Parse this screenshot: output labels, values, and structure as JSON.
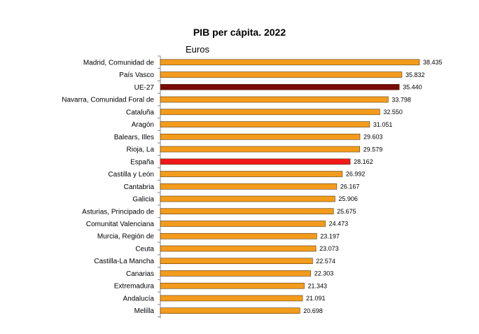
{
  "chart_data": {
    "type": "bar",
    "orientation": "horizontal",
    "title": "PIB per cápita. 2022",
    "subtitle": "Euros",
    "xlabel": "",
    "ylabel": "",
    "xlim": [
      0,
      40000
    ],
    "grid": false,
    "legend": "none",
    "colors": {
      "default": "#F39C1C",
      "UE-27": "#7B0A0A",
      "España": "#F01818",
      "bar_edge": "#5a3a10"
    },
    "categories": [
      "Madrid, Comunidad de",
      "País Vasco",
      "UE-27",
      "Navarra, Comunidad Foral de",
      "Cataluña",
      "Aragón",
      "Balears, Illes",
      "Rioja, La",
      "España",
      "Castilla y León",
      "Cantabria",
      "Galicia",
      "Asturias, Principado de",
      "Comunitat Valenciana",
      "Murcia, Región de",
      "Ceuta",
      "Castilla-La Mancha",
      "Canarias",
      "Extremadura",
      "Andalucía",
      "Melilla"
    ],
    "values": [
      38435,
      35832,
      35440,
      33798,
      32550,
      31051,
      29603,
      29579,
      28162,
      26992,
      26167,
      25906,
      25675,
      24473,
      23197,
      23073,
      22574,
      22303,
      21343,
      21091,
      20698
    ],
    "value_labels": [
      "38.435",
      "35.832",
      "35.440",
      "33.798",
      "32.550",
      "31.051",
      "29.603",
      "29.579",
      "28.162",
      "26.992",
      "26.167",
      "25.906",
      "25.675",
      "24.473",
      "23.197",
      "23.073",
      "22.574",
      "22.303",
      "21.343",
      "21.091",
      "20.698"
    ]
  }
}
